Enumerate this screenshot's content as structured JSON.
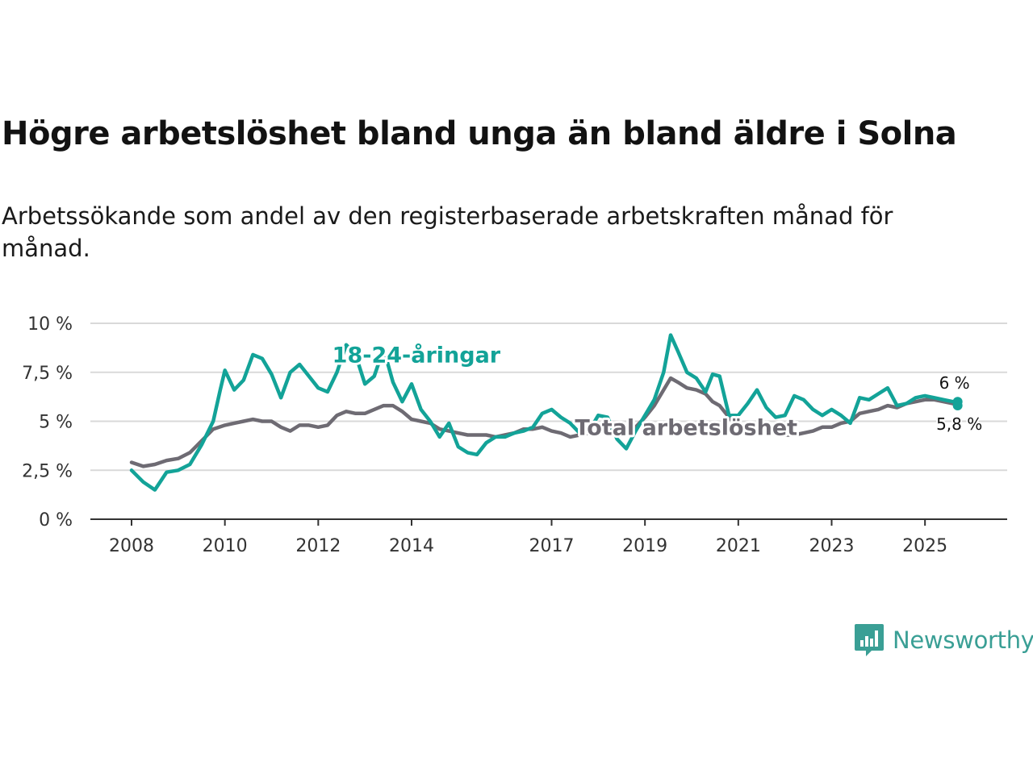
{
  "header": {
    "title": "Högre arbetslöshet bland unga än bland äldre i Solna",
    "subtitle": "Arbetssökande som andel av den registerbaserade arbetskraften månad för månad."
  },
  "branding": {
    "logo_text": "Newsworthy",
    "logo_icon": "bar-chart-speech-bubble-icon",
    "color": "#3a9f95"
  },
  "chart_data": {
    "type": "line",
    "title": "Högre arbetslöshet bland unga än bland äldre i Solna",
    "subtitle": "Arbetssökande som andel av den registerbaserade arbetskraften månad för månad.",
    "xlabel": "",
    "ylabel": "",
    "x_range": [
      2008.0,
      2026.0
    ],
    "ylim": [
      0,
      10
    ],
    "y_ticks": [
      {
        "value": 0,
        "label": "0 %"
      },
      {
        "value": 2.5,
        "label": "2,5 %"
      },
      {
        "value": 5,
        "label": "5 %"
      },
      {
        "value": 7.5,
        "label": "7,5 %"
      },
      {
        "value": 10,
        "label": "10 %"
      }
    ],
    "x_ticks": [
      {
        "value": 2008,
        "label": "2008"
      },
      {
        "value": 2010,
        "label": "2010"
      },
      {
        "value": 2012,
        "label": "2012"
      },
      {
        "value": 2014,
        "label": "2014"
      },
      {
        "value": 2017,
        "label": "2017"
      },
      {
        "value": 2019,
        "label": "2019"
      },
      {
        "value": 2021,
        "label": "2021"
      },
      {
        "value": 2023,
        "label": "2023"
      },
      {
        "value": 2025,
        "label": "2025"
      }
    ],
    "grid": true,
    "series": [
      {
        "name": "18-24-åringar",
        "label": "18-24-åringar",
        "color": "#13a398",
        "end_label": "6 %",
        "points": [
          [
            2008.0,
            2.5
          ],
          [
            2008.25,
            1.9
          ],
          [
            2008.5,
            1.5
          ],
          [
            2008.75,
            2.4
          ],
          [
            2009.0,
            2.5
          ],
          [
            2009.25,
            2.8
          ],
          [
            2009.5,
            3.8
          ],
          [
            2009.75,
            5.0
          ],
          [
            2009.9,
            6.6
          ],
          [
            2010.0,
            7.6
          ],
          [
            2010.2,
            6.6
          ],
          [
            2010.4,
            7.1
          ],
          [
            2010.6,
            8.4
          ],
          [
            2010.8,
            8.2
          ],
          [
            2011.0,
            7.4
          ],
          [
            2011.2,
            6.2
          ],
          [
            2011.4,
            7.5
          ],
          [
            2011.6,
            7.9
          ],
          [
            2011.8,
            7.3
          ],
          [
            2012.0,
            6.7
          ],
          [
            2012.2,
            6.5
          ],
          [
            2012.4,
            7.5
          ],
          [
            2012.6,
            8.9
          ],
          [
            2012.8,
            8.4
          ],
          [
            2013.0,
            6.9
          ],
          [
            2013.2,
            7.3
          ],
          [
            2013.4,
            8.7
          ],
          [
            2013.6,
            7.0
          ],
          [
            2013.8,
            6.0
          ],
          [
            2014.0,
            6.9
          ],
          [
            2014.2,
            5.6
          ],
          [
            2014.4,
            5.0
          ],
          [
            2014.6,
            4.2
          ],
          [
            2014.8,
            4.9
          ],
          [
            2015.0,
            3.7
          ],
          [
            2015.2,
            3.4
          ],
          [
            2015.4,
            3.3
          ],
          [
            2015.6,
            3.9
          ],
          [
            2015.8,
            4.2
          ],
          [
            2016.0,
            4.2
          ],
          [
            2016.2,
            4.4
          ],
          [
            2016.4,
            4.5
          ],
          [
            2016.6,
            4.7
          ],
          [
            2016.8,
            5.4
          ],
          [
            2017.0,
            5.6
          ],
          [
            2017.2,
            5.2
          ],
          [
            2017.4,
            4.9
          ],
          [
            2017.6,
            4.4
          ],
          [
            2017.8,
            4.5
          ],
          [
            2018.0,
            5.3
          ],
          [
            2018.2,
            5.2
          ],
          [
            2018.4,
            4.1
          ],
          [
            2018.6,
            3.6
          ],
          [
            2018.8,
            4.5
          ],
          [
            2019.0,
            5.3
          ],
          [
            2019.2,
            6.1
          ],
          [
            2019.4,
            7.5
          ],
          [
            2019.55,
            9.4
          ],
          [
            2019.7,
            8.6
          ],
          [
            2019.9,
            7.5
          ],
          [
            2020.1,
            7.2
          ],
          [
            2020.3,
            6.5
          ],
          [
            2020.45,
            7.4
          ],
          [
            2020.6,
            7.3
          ],
          [
            2020.8,
            5.3
          ],
          [
            2021.0,
            5.3
          ],
          [
            2021.2,
            5.9
          ],
          [
            2021.4,
            6.6
          ],
          [
            2021.6,
            5.7
          ],
          [
            2021.8,
            5.2
          ],
          [
            2022.0,
            5.3
          ],
          [
            2022.2,
            6.3
          ],
          [
            2022.4,
            6.1
          ],
          [
            2022.6,
            5.6
          ],
          [
            2022.8,
            5.3
          ],
          [
            2023.0,
            5.6
          ],
          [
            2023.2,
            5.3
          ],
          [
            2023.4,
            4.9
          ],
          [
            2023.6,
            6.2
          ],
          [
            2023.8,
            6.1
          ],
          [
            2024.0,
            6.4
          ],
          [
            2024.2,
            6.7
          ],
          [
            2024.4,
            5.8
          ],
          [
            2024.6,
            5.9
          ],
          [
            2024.8,
            6.2
          ],
          [
            2025.0,
            6.3
          ],
          [
            2025.2,
            6.2
          ],
          [
            2025.4,
            6.1
          ],
          [
            2025.6,
            6.0
          ],
          [
            2025.7,
            6.0
          ]
        ]
      },
      {
        "name": "Total arbetslöshet",
        "label": "Total arbetslöshet",
        "color": "#6e6b73",
        "end_label": "5,8 %",
        "points": [
          [
            2008.0,
            2.9
          ],
          [
            2008.25,
            2.7
          ],
          [
            2008.5,
            2.8
          ],
          [
            2008.75,
            3.0
          ],
          [
            2009.0,
            3.1
          ],
          [
            2009.25,
            3.4
          ],
          [
            2009.5,
            4.0
          ],
          [
            2009.75,
            4.6
          ],
          [
            2010.0,
            4.8
          ],
          [
            2010.2,
            4.9
          ],
          [
            2010.4,
            5.0
          ],
          [
            2010.6,
            5.1
          ],
          [
            2010.8,
            5.0
          ],
          [
            2011.0,
            5.0
          ],
          [
            2011.2,
            4.7
          ],
          [
            2011.4,
            4.5
          ],
          [
            2011.6,
            4.8
          ],
          [
            2011.8,
            4.8
          ],
          [
            2012.0,
            4.7
          ],
          [
            2012.2,
            4.8
          ],
          [
            2012.4,
            5.3
          ],
          [
            2012.6,
            5.5
          ],
          [
            2012.8,
            5.4
          ],
          [
            2013.0,
            5.4
          ],
          [
            2013.2,
            5.6
          ],
          [
            2013.4,
            5.8
          ],
          [
            2013.6,
            5.8
          ],
          [
            2013.8,
            5.5
          ],
          [
            2014.0,
            5.1
          ],
          [
            2014.2,
            5.0
          ],
          [
            2014.4,
            4.9
          ],
          [
            2014.6,
            4.6
          ],
          [
            2014.8,
            4.5
          ],
          [
            2015.0,
            4.4
          ],
          [
            2015.2,
            4.3
          ],
          [
            2015.4,
            4.3
          ],
          [
            2015.6,
            4.3
          ],
          [
            2015.8,
            4.2
          ],
          [
            2016.0,
            4.3
          ],
          [
            2016.2,
            4.4
          ],
          [
            2016.4,
            4.6
          ],
          [
            2016.6,
            4.6
          ],
          [
            2016.8,
            4.7
          ],
          [
            2017.0,
            4.5
          ],
          [
            2017.2,
            4.4
          ],
          [
            2017.4,
            4.2
          ],
          [
            2017.6,
            4.3
          ],
          [
            2017.8,
            4.4
          ],
          [
            2018.0,
            4.5
          ],
          [
            2018.2,
            4.7
          ],
          [
            2018.4,
            4.5
          ],
          [
            2018.6,
            4.5
          ],
          [
            2018.8,
            4.7
          ],
          [
            2019.0,
            5.2
          ],
          [
            2019.2,
            5.8
          ],
          [
            2019.4,
            6.6
          ],
          [
            2019.55,
            7.2
          ],
          [
            2019.7,
            7.0
          ],
          [
            2019.9,
            6.7
          ],
          [
            2020.1,
            6.6
          ],
          [
            2020.3,
            6.4
          ],
          [
            2020.45,
            6.0
          ],
          [
            2020.6,
            5.8
          ],
          [
            2020.8,
            5.2
          ],
          [
            2021.0,
            4.7
          ],
          [
            2021.2,
            4.4
          ],
          [
            2021.4,
            4.5
          ],
          [
            2021.6,
            4.6
          ],
          [
            2021.8,
            4.5
          ],
          [
            2022.0,
            4.3
          ],
          [
            2022.2,
            4.3
          ],
          [
            2022.4,
            4.4
          ],
          [
            2022.6,
            4.5
          ],
          [
            2022.8,
            4.7
          ],
          [
            2023.0,
            4.7
          ],
          [
            2023.2,
            4.9
          ],
          [
            2023.4,
            5.0
          ],
          [
            2023.6,
            5.4
          ],
          [
            2023.8,
            5.5
          ],
          [
            2024.0,
            5.6
          ],
          [
            2024.2,
            5.8
          ],
          [
            2024.4,
            5.7
          ],
          [
            2024.6,
            5.9
          ],
          [
            2024.8,
            6.0
          ],
          [
            2025.0,
            6.1
          ],
          [
            2025.2,
            6.1
          ],
          [
            2025.4,
            6.0
          ],
          [
            2025.6,
            5.9
          ],
          [
            2025.7,
            5.8
          ]
        ]
      }
    ]
  }
}
